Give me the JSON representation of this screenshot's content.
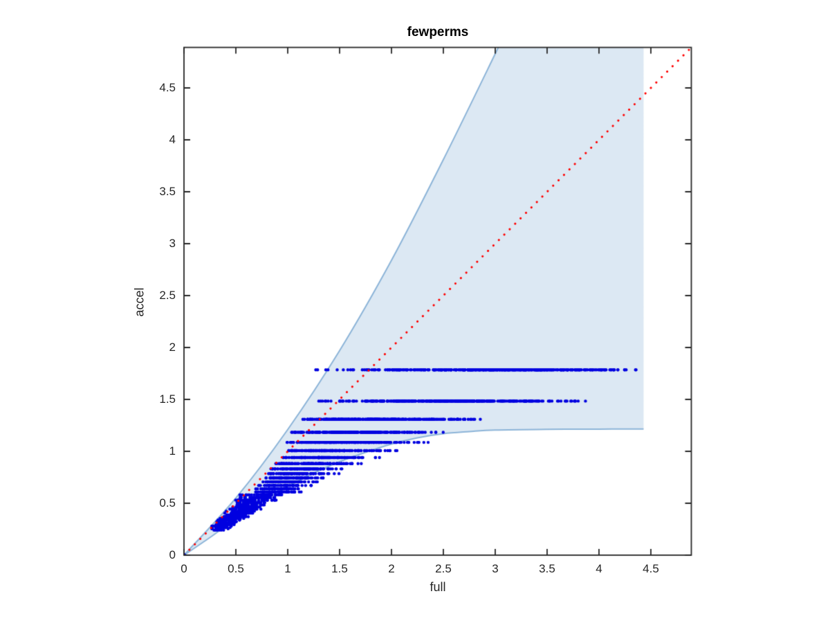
{
  "chart_data": {
    "type": "scatter",
    "title": "fewperms",
    "xlabel": "full",
    "ylabel": "accel",
    "xlim": [
      0,
      4.89
    ],
    "ylim": [
      0,
      4.89
    ],
    "x_ticks": [
      0,
      0.5,
      1,
      1.5,
      2,
      2.5,
      3,
      3.5,
      4,
      4.5
    ],
    "y_ticks": [
      0,
      0.5,
      1,
      1.5,
      2,
      2.5,
      3,
      3.5,
      4,
      4.5
    ],
    "grid": false,
    "legend": "none",
    "axis_color": "#262626",
    "marker": {
      "shape": "dot",
      "color": "#0000e0",
      "radius_px": 2.2
    },
    "identity_line": {
      "style": "dotted",
      "color": "#ff0000",
      "from": [
        0,
        0
      ],
      "to": [
        4.89,
        4.89
      ]
    },
    "envelope": {
      "description": "confidence funnel region, filled light blue with stroked upper/lower edges",
      "fill_color": "#dce8f3",
      "edge_color": "#8cb4d8",
      "x_right_edge": 4.43,
      "upper_curve": [
        [
          0,
          0
        ],
        [
          0.5,
          0.55
        ],
        [
          1.0,
          1.21
        ],
        [
          1.5,
          1.97
        ],
        [
          2.0,
          2.84
        ],
        [
          2.5,
          3.81
        ],
        [
          3.03,
          4.89
        ]
      ],
      "lower_curve": [
        [
          0,
          0
        ],
        [
          0.25,
          0.17
        ],
        [
          0.5,
          0.35
        ],
        [
          0.75,
          0.51
        ],
        [
          1.0,
          0.66
        ],
        [
          1.25,
          0.79
        ],
        [
          1.5,
          0.9
        ],
        [
          1.75,
          0.99
        ],
        [
          2.0,
          1.07
        ],
        [
          2.25,
          1.13
        ],
        [
          2.5,
          1.17
        ],
        [
          2.75,
          1.19
        ],
        [
          3.0,
          1.205
        ],
        [
          3.5,
          1.212
        ],
        [
          4.0,
          1.214
        ],
        [
          4.43,
          1.215
        ]
      ]
    },
    "scatter_bands": {
      "description": "y values quantized at -log10(k/61) (60 permutations); each band: [y, x_min, x_max, count, skew]",
      "origin_dot": [
        0,
        0
      ],
      "bands": [
        [
          1.785,
          1.17,
          4.43,
          420,
          0.85
        ],
        [
          1.484,
          1.19,
          4.05,
          380,
          1.05
        ],
        [
          1.308,
          1.12,
          2.97,
          300,
          1.3
        ],
        [
          1.183,
          1.03,
          2.62,
          240,
          1.3
        ],
        [
          1.086,
          0.99,
          2.42,
          200,
          1.3
        ],
        [
          1.007,
          0.93,
          2.12,
          170,
          1.3
        ],
        [
          0.94,
          0.9,
          1.97,
          130,
          1.3
        ],
        [
          0.882,
          0.86,
          1.75,
          110,
          1.25
        ],
        [
          0.831,
          0.82,
          1.6,
          95,
          1.25
        ],
        [
          0.785,
          0.79,
          1.5,
          85,
          1.25
        ],
        [
          0.744,
          0.76,
          1.42,
          75,
          1.2
        ],
        [
          0.706,
          0.74,
          1.35,
          70,
          1.2
        ],
        [
          0.671,
          0.71,
          1.28,
          62,
          1.2
        ],
        [
          0.639,
          0.69,
          1.22,
          56,
          1.2
        ],
        [
          0.609,
          0.67,
          1.17,
          52,
          1.2
        ],
        [
          0.581,
          0.52,
          1.0,
          48,
          1.1
        ],
        [
          0.555,
          0.5,
          0.95,
          44,
          1.1
        ],
        [
          0.53,
          0.48,
          0.91,
          42,
          1.1
        ],
        [
          0.507,
          0.46,
          0.87,
          40,
          1.1
        ],
        [
          0.484,
          0.44,
          0.83,
          38,
          1.1
        ],
        [
          0.463,
          0.43,
          0.8,
          36,
          1.1
        ],
        [
          0.443,
          0.41,
          0.76,
          34,
          1.1
        ],
        [
          0.424,
          0.39,
          0.73,
          32,
          1.1
        ],
        [
          0.405,
          0.38,
          0.7,
          31,
          1.1
        ],
        [
          0.387,
          0.36,
          0.67,
          30,
          1.1
        ],
        [
          0.37,
          0.35,
          0.64,
          28,
          1.1
        ],
        [
          0.354,
          0.33,
          0.61,
          27,
          1.1
        ],
        [
          0.338,
          0.32,
          0.58,
          26,
          1.1
        ],
        [
          0.323,
          0.3,
          0.56,
          25,
          1.1
        ],
        [
          0.308,
          0.29,
          0.53,
          24,
          1.1
        ],
        [
          0.294,
          0.28,
          0.51,
          22,
          1.1
        ],
        [
          0.28,
          0.26,
          0.48,
          20,
          1.1
        ],
        [
          0.266,
          0.25,
          0.46,
          17,
          1.1
        ],
        [
          0.254,
          0.24,
          0.44,
          12,
          1.1
        ],
        [
          0.241,
          0.23,
          0.41,
          8,
          1.1
        ]
      ],
      "seed": 7
    }
  }
}
